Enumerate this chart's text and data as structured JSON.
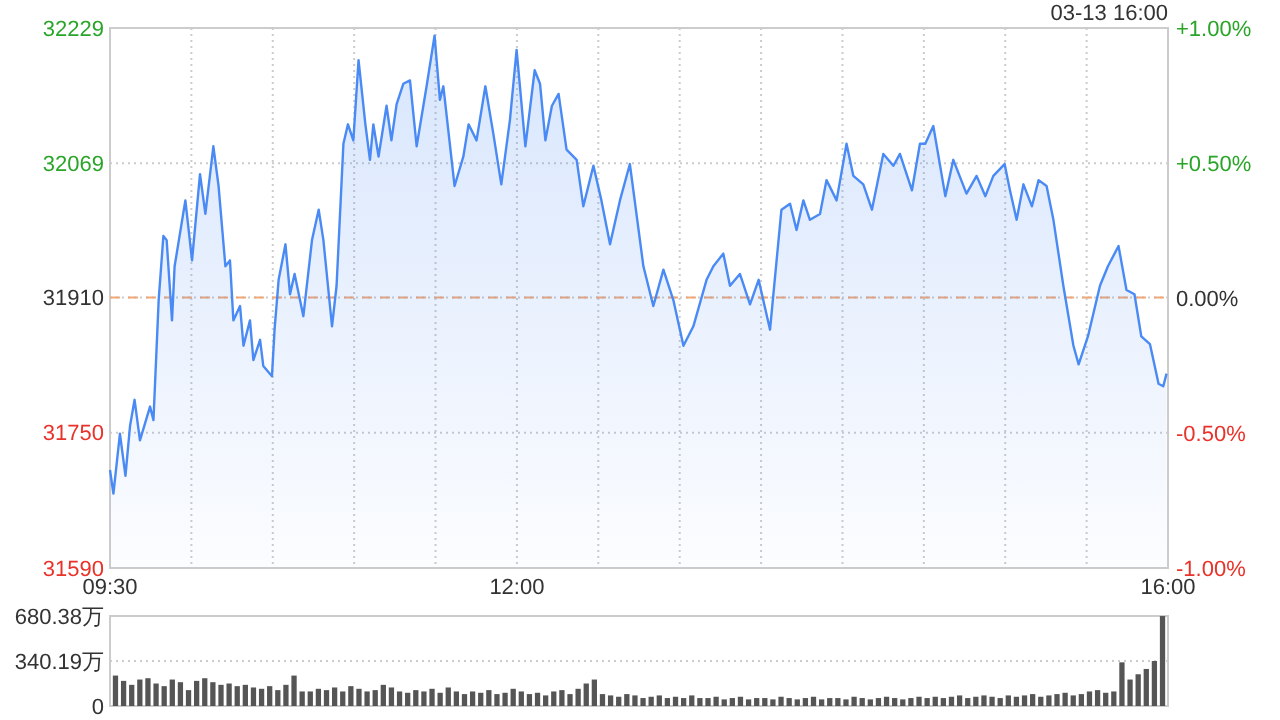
{
  "chart_data": [
    {
      "type": "area",
      "annotations": [
        "03-13 16:00"
      ],
      "grid": true,
      "line_style": "solid",
      "xlim": [
        9.5,
        16
      ],
      "xticks": [
        {
          "value": 9.5,
          "label": "09:30"
        },
        {
          "value": 10,
          "label": null
        },
        {
          "value": 10.5,
          "label": null
        },
        {
          "value": 11,
          "label": null
        },
        {
          "value": 11.5,
          "label": null
        },
        {
          "value": 12,
          "label": "12:00"
        },
        {
          "value": 12.5,
          "label": null
        },
        {
          "value": 13,
          "label": null
        },
        {
          "value": 13.5,
          "label": null
        },
        {
          "value": 14,
          "label": null
        },
        {
          "value": 14.5,
          "label": null
        },
        {
          "value": 15,
          "label": null
        },
        {
          "value": 15.5,
          "label": null
        },
        {
          "value": 16,
          "label": "16:00"
        }
      ],
      "ylim": [
        31590,
        32229
      ],
      "yticks": [
        31590,
        31750,
        31910,
        32069,
        32229
      ],
      "y2lim": [
        -1,
        1
      ],
      "y2ticks": [
        {
          "value": -1,
          "label": "-1.00%"
        },
        {
          "value": -0.5,
          "label": "-0.50%"
        },
        {
          "value": 0,
          "label": "0.00%"
        },
        {
          "value": 0.5,
          "label": "+0.50%"
        },
        {
          "value": 1,
          "label": "+1.00%"
        }
      ],
      "ref_lines": [
        {
          "axis": "y",
          "value": 31910,
          "color": "#f0a878",
          "line_style": "dashed"
        }
      ],
      "series": [
        {
          "color": "#4a8af4",
          "x": [
            9.5,
            9.521,
            9.561,
            9.595,
            9.623,
            9.651,
            9.684,
            9.746,
            9.767,
            9.799,
            9.828,
            9.848,
            9.881,
            9.897,
            9.963,
            10.004,
            10.053,
            10.086,
            10.135,
            10.167,
            10.209,
            10.237,
            10.258,
            10.299,
            10.32,
            10.36,
            10.381,
            10.422,
            10.442,
            10.495,
            10.511,
            10.536,
            10.578,
            10.606,
            10.634,
            10.688,
            10.741,
            10.782,
            10.811,
            10.864,
            10.892,
            10.934,
            10.962,
            10.995,
            11.027,
            11.069,
            11.097,
            11.118,
            11.15,
            11.199,
            11.229,
            11.261,
            11.302,
            11.343,
            11.384,
            11.445,
            11.494,
            11.527,
            11.548,
            11.617,
            11.671,
            11.703,
            11.752,
            11.806,
            11.855,
            11.904,
            11.957,
            11.998,
            12.052,
            12.109,
            12.142,
            12.175,
            12.215,
            12.256,
            12.305,
            12.367,
            12.408,
            12.47,
            12.519,
            12.572,
            12.633,
            12.694,
            12.777,
            12.838,
            12.9,
            12.961,
            13.023,
            13.084,
            13.165,
            13.207,
            13.268,
            13.309,
            13.37,
            13.432,
            13.485,
            13.555,
            13.625,
            13.678,
            13.718,
            13.76,
            13.8,
            13.862,
            13.902,
            13.964,
            14.025,
            14.067,
            14.128,
            14.181,
            14.251,
            14.313,
            14.353,
            14.427,
            14.476,
            14.509,
            14.558,
            14.632,
            14.681,
            14.762,
            14.824,
            14.878,
            14.927,
            14.996,
            15.029,
            15.07,
            15.112,
            15.164,
            15.205,
            15.254,
            15.296,
            15.357,
            15.419,
            15.451,
            15.508,
            15.582,
            15.631,
            15.696,
            15.745,
            15.794,
            15.836,
            15.889,
            15.942,
            15.971,
            15.991
          ],
          "values": [
            31706,
            31678,
            31749,
            31699,
            31758,
            31789,
            31741,
            31781,
            31765,
            31907,
            31983,
            31978,
            31883,
            31947,
            32025,
            31954,
            32056,
            32009,
            32089,
            32042,
            31947,
            31954,
            31883,
            31900,
            31853,
            31883,
            31836,
            31860,
            31829,
            31817,
            31872,
            31931,
            31973,
            31914,
            31938,
            31888,
            31978,
            32014,
            31978,
            31876,
            31924,
            32092,
            32115,
            32096,
            32191,
            32115,
            32073,
            32115,
            32077,
            32137,
            32096,
            32139,
            32163,
            32167,
            32089,
            32160,
            32220,
            32144,
            32160,
            32042,
            32077,
            32115,
            32096,
            32160,
            32104,
            32044,
            32120,
            32203,
            32089,
            32179,
            32163,
            32096,
            32137,
            32151,
            32085,
            32073,
            32018,
            32066,
            32025,
            31973,
            32025,
            32068,
            31947,
            31900,
            31943,
            31907,
            31853,
            31876,
            31931,
            31947,
            31962,
            31924,
            31938,
            31902,
            31931,
            31872,
            32014,
            32021,
            31990,
            32025,
            32002,
            32009,
            32049,
            32025,
            32092,
            32054,
            32044,
            32014,
            32080,
            32066,
            32080,
            32037,
            32092,
            32092,
            32113,
            32030,
            32073,
            32033,
            32054,
            32030,
            32054,
            32068,
            32037,
            32002,
            32044,
            32018,
            32049,
            32042,
            32002,
            31924,
            31853,
            31831,
            31864,
            31924,
            31947,
            31971,
            31919,
            31914,
            31864,
            31855,
            31808,
            31805,
            31820
          ]
        }
      ]
    },
    {
      "type": "bar",
      "grid": "y",
      "tick_labels": "y",
      "ylim": [
        0,
        680.38
      ],
      "yticks": [
        0,
        {
          "value": 340.19,
          "label": "340.19万"
        },
        {
          "value": 680.38,
          "label": "680.38万"
        }
      ],
      "categories": [
        null,
        null,
        null,
        null,
        null,
        null,
        null,
        null,
        null,
        null,
        null,
        null,
        null,
        null,
        null,
        null,
        null,
        null,
        null,
        null,
        null,
        null,
        null,
        null,
        null,
        null,
        null,
        null,
        null,
        null,
        null,
        null,
        null,
        null,
        null,
        null,
        null,
        null,
        null,
        null,
        null,
        null,
        null,
        null,
        null,
        null,
        null,
        null,
        null,
        null,
        null,
        null,
        null,
        null,
        null,
        null,
        null,
        null,
        null,
        null,
        null,
        null,
        null,
        null,
        null,
        null,
        null,
        null,
        null,
        null,
        null,
        null,
        null,
        null,
        null,
        null,
        null,
        null,
        null,
        null,
        null,
        null,
        null,
        null,
        null,
        null,
        null,
        null,
        null,
        null,
        null,
        null,
        null,
        null,
        null,
        null,
        null,
        null,
        null,
        null,
        null,
        null,
        null,
        null,
        null,
        null,
        null,
        null,
        null,
        null,
        null,
        null,
        null,
        null,
        null,
        null,
        null,
        null,
        null,
        null,
        null,
        null,
        null,
        null,
        null,
        null,
        null,
        null,
        null,
        null
      ],
      "series": [
        {
          "color": "#555555",
          "values": [
            230,
            190,
            160,
            200,
            210,
            170,
            150,
            200,
            180,
            120,
            190,
            210,
            180,
            160,
            170,
            150,
            160,
            140,
            130,
            150,
            120,
            160,
            230,
            110,
            110,
            130,
            120,
            140,
            110,
            150,
            130,
            110,
            120,
            160,
            140,
            110,
            100,
            120,
            110,
            130,
            100,
            140,
            110,
            90,
            110,
            100,
            120,
            90,
            100,
            130,
            110,
            90,
            100,
            80,
            110,
            120,
            90,
            130,
            170,
            200,
            90,
            80,
            70,
            90,
            80,
            60,
            70,
            80,
            60,
            70,
            60,
            80,
            60,
            60,
            70,
            50,
            60,
            70,
            50,
            60,
            60,
            50,
            70,
            60,
            50,
            60,
            70,
            50,
            60,
            60,
            50,
            70,
            60,
            50,
            60,
            70,
            60,
            50,
            60,
            70,
            60,
            70,
            60,
            70,
            80,
            60,
            70,
            80,
            70,
            60,
            80,
            70,
            80,
            90,
            70,
            80,
            90,
            100,
            80,
            90,
            110,
            120,
            100,
            110,
            330,
            200,
            240,
            280,
            340,
            680
          ]
        }
      ]
    }
  ]
}
